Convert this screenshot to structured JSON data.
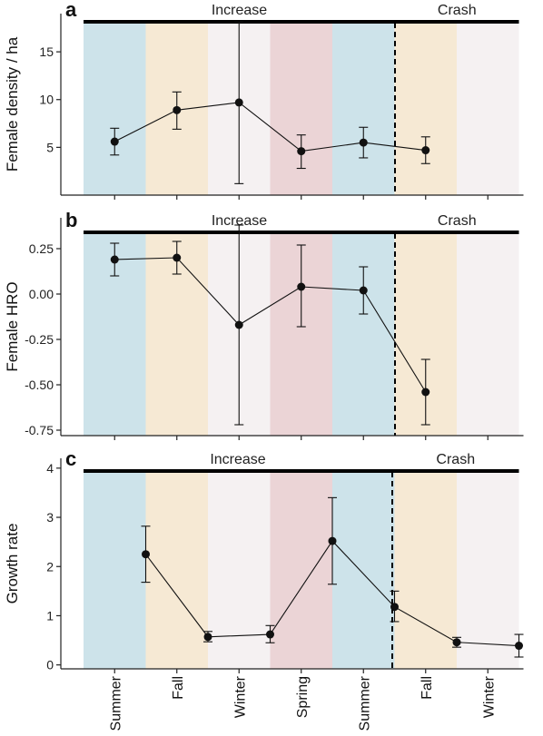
{
  "colors": {
    "Summer": "#cde3ea",
    "Fall": "#f6e9d4",
    "Winter": "#f5f1f2",
    "Spring": "#ebd4d6",
    "line": "#111111"
  },
  "chart_data": {
    "type": "line",
    "categories": [
      "Summer",
      "Fall",
      "Winter",
      "Spring",
      "Summer",
      "Fall",
      "Winter"
    ],
    "phases": [
      {
        "name": "Increase",
        "seasons": [
          0,
          1,
          2,
          3,
          4
        ]
      },
      {
        "name": "Crash",
        "seasons": [
          5,
          6
        ]
      }
    ],
    "panels": [
      {
        "letter": "a",
        "ylabel": "Female density / ha",
        "ylim": [
          0,
          19
        ],
        "yticks": [
          5,
          10,
          15
        ],
        "ytick_labels": [
          "5",
          "10",
          "15"
        ],
        "points": [
          {
            "x": 0.5,
            "y": 5.6,
            "lo": 4.2,
            "hi": 7.0
          },
          {
            "x": 1.5,
            "y": 8.9,
            "lo": 6.9,
            "hi": 10.8
          },
          {
            "x": 2.5,
            "y": 9.7,
            "lo": 1.2,
            "hi": 18.1
          },
          {
            "x": 3.5,
            "y": 4.6,
            "lo": 2.8,
            "hi": 6.3
          },
          {
            "x": 4.5,
            "y": 5.5,
            "lo": 3.9,
            "hi": 7.1
          },
          {
            "x": 5.5,
            "y": 4.7,
            "lo": 3.3,
            "hi": 6.1
          }
        ]
      },
      {
        "letter": "b",
        "ylabel": "Female HRO",
        "ylim": [
          -0.78,
          0.42
        ],
        "yticks": [
          0.25,
          0.0,
          -0.25,
          -0.5,
          -0.75
        ],
        "ytick_labels": [
          "0.25",
          "0.00",
          "-0.25",
          "-0.50",
          "-0.75"
        ],
        "points": [
          {
            "x": 0.5,
            "y": 0.19,
            "lo": 0.1,
            "hi": 0.28
          },
          {
            "x": 1.5,
            "y": 0.2,
            "lo": 0.11,
            "hi": 0.29
          },
          {
            "x": 2.5,
            "y": -0.17,
            "lo": -0.72,
            "hi": 0.38
          },
          {
            "x": 3.5,
            "y": 0.04,
            "lo": -0.18,
            "hi": 0.27
          },
          {
            "x": 4.5,
            "y": 0.02,
            "lo": -0.11,
            "hi": 0.15
          },
          {
            "x": 5.5,
            "y": -0.54,
            "lo": -0.72,
            "hi": -0.36
          }
        ]
      },
      {
        "letter": "c",
        "ylabel": "Growth rate",
        "ylim": [
          -0.08,
          4.2
        ],
        "yticks": [
          0,
          1,
          2,
          3,
          4
        ],
        "ytick_labels": [
          "0",
          "1",
          "2",
          "3",
          "4"
        ],
        "points": [
          {
            "x": 1.0,
            "y": 2.25,
            "lo": 1.68,
            "hi": 2.82
          },
          {
            "x": 2.0,
            "y": 0.57,
            "lo": 0.47,
            "hi": 0.68
          },
          {
            "x": 3.0,
            "y": 0.62,
            "lo": 0.45,
            "hi": 0.8
          },
          {
            "x": 4.0,
            "y": 2.52,
            "lo": 1.64,
            "hi": 3.4
          },
          {
            "x": 5.0,
            "y": 1.18,
            "lo": 0.88,
            "hi": 1.5
          },
          {
            "x": 6.0,
            "y": 0.46,
            "lo": 0.36,
            "hi": 0.56
          },
          {
            "x": 7.0,
            "y": 0.39,
            "lo": 0.16,
            "hi": 0.62
          }
        ]
      }
    ]
  }
}
